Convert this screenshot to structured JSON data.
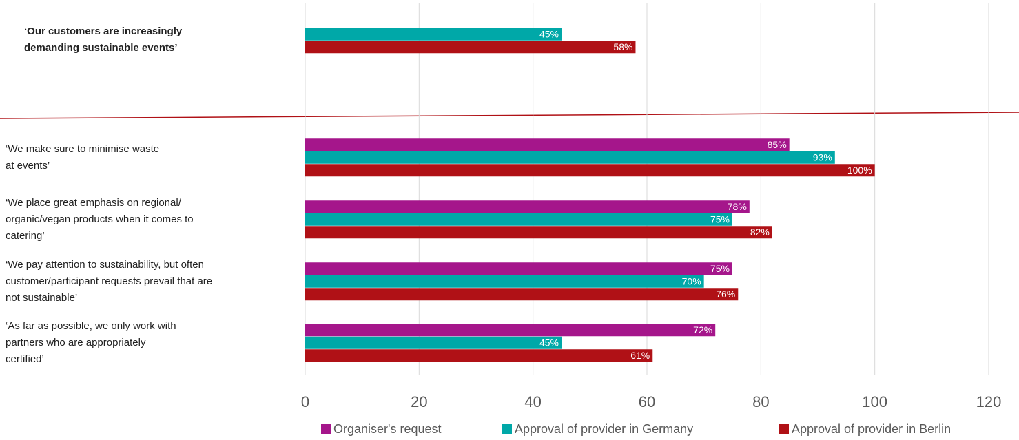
{
  "chart_data": {
    "type": "bar",
    "orientation": "horizontal",
    "categories": [
      "‘Our customers are increasingly\ndemanding sustainable events’",
      "‘We make sure to minimise waste\nat events’",
      "‘We place great emphasis on regional/\norganic/vegan products when it comes to\ncatering’",
      "‘We pay attention to sustainability, but often\ncustomer/participant requests prevail that are\nnot sustainable’",
      "‘As far as possible, we only work with\npartners who are appropriately\ncertified’"
    ],
    "series": [
      {
        "name": "Organiser's request",
        "color": "#a5168b",
        "values": [
          null,
          85,
          78,
          75,
          72
        ],
        "value_labels": [
          null,
          "85%",
          "78%",
          "75%",
          "72%"
        ]
      },
      {
        "name": "Approval of provider in Germany",
        "color": "#00a8a8",
        "values": [
          45,
          93,
          75,
          70,
          45
        ],
        "value_labels": [
          "45%",
          "93%",
          "75%",
          "70%",
          "45%"
        ]
      },
      {
        "name": "Approval of provider in Berlin",
        "color": "#b01116",
        "values": [
          58,
          100,
          82,
          76,
          61
        ],
        "value_labels": [
          "58%",
          "100%",
          "82%",
          "76%",
          "61%"
        ]
      }
    ],
    "xlim": [
      0,
      120
    ],
    "xticks": [
      0,
      20,
      40,
      60,
      80,
      100,
      120
    ],
    "grid": true,
    "legend": "bottom"
  }
}
